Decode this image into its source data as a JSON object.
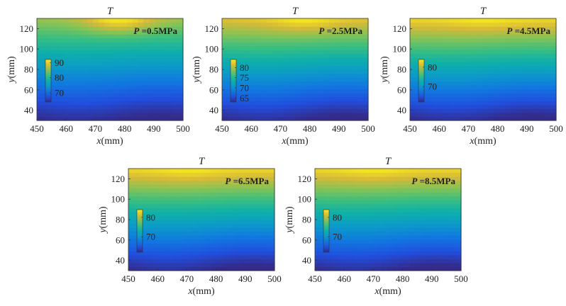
{
  "chart_data": [
    {
      "type": "heatmap",
      "title": "T",
      "xlabel_var": "x",
      "xlabel_unit": "(mm)",
      "ylabel_var": "y",
      "ylabel_unit": "(mm)",
      "xlim": [
        450,
        500
      ],
      "ylim": [
        30,
        130
      ],
      "xticks": [
        "450",
        "460",
        "470",
        "480",
        "490",
        "500"
      ],
      "yticks": [
        "40",
        "60",
        "80",
        "100",
        "120"
      ],
      "annotation_var": "P",
      "annotation_value": " =0.5MPa",
      "colorbar": {
        "ticks": [
          "70",
          "80",
          "90"
        ],
        "tick_values": [
          70,
          80,
          90
        ],
        "range": [
          64,
          92
        ]
      },
      "field": {
        "t_bottom": 64,
        "t_top": 86,
        "hotspot": {
          "x": 478,
          "y": 130,
          "value": 92
        }
      }
    },
    {
      "type": "heatmap",
      "title": "T",
      "xlabel_var": "x",
      "xlabel_unit": "(mm)",
      "ylabel_var": "y",
      "ylabel_unit": "(mm)",
      "xlim": [
        450,
        500
      ],
      "ylim": [
        30,
        130
      ],
      "xticks": [
        "450",
        "460",
        "470",
        "480",
        "490",
        "500"
      ],
      "yticks": [
        "40",
        "60",
        "80",
        "100",
        "120"
      ],
      "annotation_var": "P",
      "annotation_value": " =2.5MPa",
      "colorbar": {
        "ticks": [
          "65",
          "70",
          "75",
          "80"
        ],
        "tick_values": [
          65,
          70,
          75,
          80
        ],
        "range": [
          63,
          84
        ]
      },
      "field": {
        "t_bottom": 63,
        "t_top": 82,
        "hotspot": {
          "x": 478,
          "y": 130,
          "value": 84
        }
      }
    },
    {
      "type": "heatmap",
      "title": "T",
      "xlabel_var": "x",
      "xlabel_unit": "(mm)",
      "ylabel_var": "y",
      "ylabel_unit": "(mm)",
      "xlim": [
        450,
        500
      ],
      "ylim": [
        30,
        130
      ],
      "xticks": [
        "450",
        "460",
        "470",
        "480",
        "490",
        "500"
      ],
      "yticks": [
        "40",
        "60",
        "80",
        "100",
        "120"
      ],
      "annotation_var": "P",
      "annotation_value": " =4.5MPa",
      "colorbar": {
        "ticks": [
          "70",
          "80"
        ],
        "tick_values": [
          70,
          80
        ],
        "range": [
          62,
          84
        ]
      },
      "field": {
        "t_bottom": 62,
        "t_top": 83,
        "hotspot": {
          "x": 475,
          "y": 130,
          "value": 84
        }
      }
    },
    {
      "type": "heatmap",
      "title": "T",
      "xlabel_var": "x",
      "xlabel_unit": "(mm)",
      "ylabel_var": "y",
      "ylabel_unit": "(mm)",
      "xlim": [
        450,
        500
      ],
      "ylim": [
        30,
        130
      ],
      "xticks": [
        "450",
        "460",
        "470",
        "480",
        "490",
        "500"
      ],
      "yticks": [
        "40",
        "60",
        "80",
        "100",
        "120"
      ],
      "annotation_var": "P",
      "annotation_value": " =6.5MPa",
      "colorbar": {
        "ticks": [
          "70",
          "80"
        ],
        "tick_values": [
          70,
          80
        ],
        "range": [
          62,
          84
        ]
      },
      "field": {
        "t_bottom": 62,
        "t_top": 83,
        "hotspot": {
          "x": 470,
          "y": 130,
          "value": 84
        }
      }
    },
    {
      "type": "heatmap",
      "title": "T",
      "xlabel_var": "x",
      "xlabel_unit": "(mm)",
      "ylabel_var": "y",
      "ylabel_unit": "(mm)",
      "xlim": [
        450,
        500
      ],
      "ylim": [
        30,
        130
      ],
      "xticks": [
        "450",
        "460",
        "470",
        "480",
        "490",
        "500"
      ],
      "yticks": [
        "40",
        "60",
        "80",
        "100",
        "120"
      ],
      "annotation_var": "P",
      "annotation_value": " =8.5MPa",
      "colorbar": {
        "ticks": [
          "70",
          "80"
        ],
        "tick_values": [
          70,
          80
        ],
        "range": [
          62,
          84
        ]
      },
      "field": {
        "t_bottom": 62,
        "t_top": 83,
        "hotspot": {
          "x": 470,
          "y": 130,
          "value": 84
        }
      }
    }
  ]
}
